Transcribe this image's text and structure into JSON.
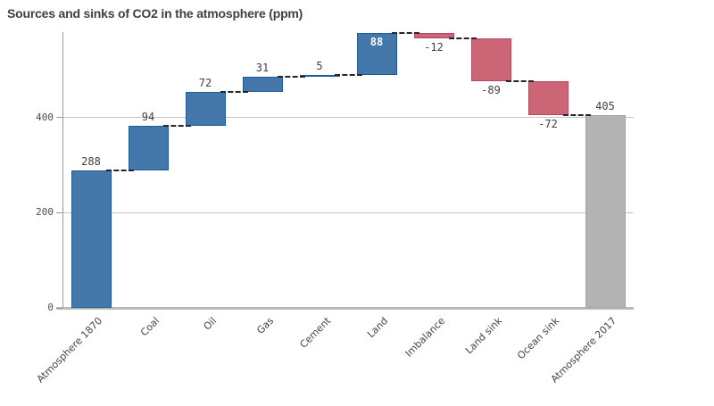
{
  "chart_data": {
    "type": "bar",
    "subtype": "waterfall",
    "title": "Sources and sinks of CO2 in the atmosphere (ppm)",
    "categories": [
      "Atmosphere 1870",
      "Coal",
      "Oil",
      "Gas",
      "Cement",
      "Land",
      "Imbalance",
      "Land sink",
      "Ocean sink",
      "Atmosphere 2017"
    ],
    "values": [
      288,
      94,
      72,
      31,
      5,
      88,
      -12,
      -89,
      -72,
      405
    ],
    "data_labels": [
      "288",
      "94",
      "72",
      "31",
      "5",
      "88",
      "-12",
      "-89",
      "-72",
      "405"
    ],
    "measure_roles": [
      "add",
      "add",
      "add",
      "add",
      "add",
      "add",
      "subtract",
      "subtract",
      "subtract",
      "total"
    ],
    "cumulative": [
      288,
      382,
      454,
      485,
      490,
      578,
      566,
      477,
      405,
      405
    ],
    "label_inside": [
      false,
      false,
      false,
      false,
      false,
      true,
      false,
      false,
      false,
      false
    ],
    "xlabel": "",
    "ylabel": "",
    "yticks": [
      0,
      200,
      400
    ],
    "ytick_labels": [
      "0",
      "200",
      "400"
    ],
    "ylim": [
      0,
      590
    ],
    "grid": true,
    "legend": false,
    "connector_style": "dashed",
    "colors": {
      "positive": "#4477AA",
      "positive_border": "#1F5C99",
      "negative": "#CC6677",
      "negative_border": "#B04A60",
      "total": "#B3B3B3",
      "total_border": "#A3A3A3",
      "connector": "#262626",
      "title_text": "#404040",
      "axis_line": "#999999",
      "baseline": "#B9B9B9",
      "gridline": "#C6C6C6",
      "label_text": "#404040",
      "inside_label_text": "#FFFFFF"
    }
  }
}
